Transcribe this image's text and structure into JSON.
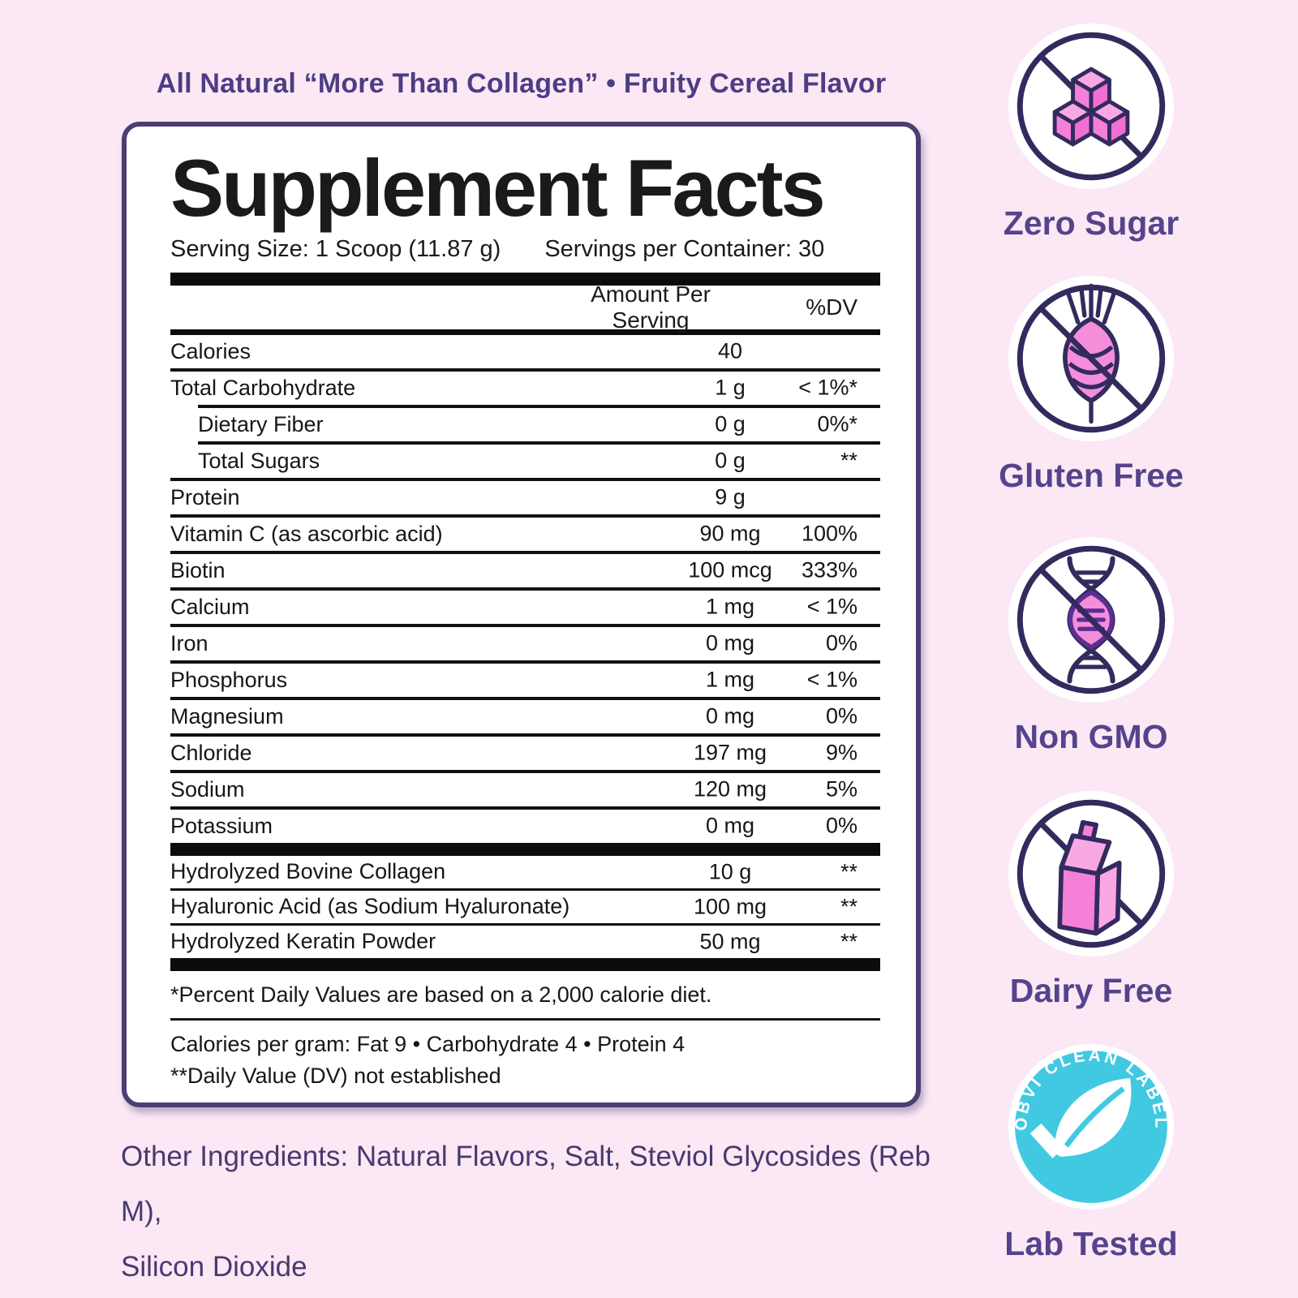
{
  "page": {
    "background": "#fbe8f4"
  },
  "header": {
    "tagline": "All Natural “More Than Collagen” • Fruity Cereal Flavor"
  },
  "panel": {
    "title": "Supplement Facts",
    "serving_size": "Serving Size: 1 Scoop (11.87 g)",
    "servings_per_container": "Servings per Container: 30",
    "columns": {
      "amount": "Amount Per Serving",
      "dv": "%DV"
    },
    "rows": [
      {
        "name": "Calories",
        "amount": "40",
        "dv": "",
        "indent": false
      },
      {
        "name": "Total Carbohydrate",
        "amount": "1 g",
        "dv": "< 1%*",
        "indent": false
      },
      {
        "name": "Dietary Fiber",
        "amount": "0 g",
        "dv": "0%*",
        "indent": true
      },
      {
        "name": "Total Sugars",
        "amount": "0 g",
        "dv": "**",
        "indent": true
      },
      {
        "name": "Protein",
        "amount": "9 g",
        "dv": "",
        "indent": false
      },
      {
        "name": "Vitamin C (as ascorbic acid)",
        "amount": "90 mg",
        "dv": "100%",
        "indent": false
      },
      {
        "name": "Biotin",
        "amount": "100 mcg",
        "dv": "333%",
        "indent": false
      },
      {
        "name": "Calcium",
        "amount": "1 mg",
        "dv": "< 1%",
        "indent": false
      },
      {
        "name": "Iron",
        "amount": "0 mg",
        "dv": "0%",
        "indent": false
      },
      {
        "name": "Phosphorus",
        "amount": "1 mg",
        "dv": "< 1%",
        "indent": false
      },
      {
        "name": "Magnesium",
        "amount": "0 mg",
        "dv": "0%",
        "indent": false
      },
      {
        "name": "Chloride",
        "amount": "197 mg",
        "dv": "9%",
        "indent": false
      },
      {
        "name": "Sodium",
        "amount": "120 mg",
        "dv": "5%",
        "indent": false
      },
      {
        "name": "Potassium",
        "amount": "0 mg",
        "dv": "0%",
        "indent": false
      }
    ],
    "blend_rows": [
      {
        "name": "Hydrolyzed Bovine Collagen",
        "amount": "10 g",
        "dv": "**",
        "indent": false
      },
      {
        "name": "Hyaluronic Acid (as Sodium Hyaluronate)",
        "amount": "100 mg",
        "dv": "**",
        "indent": false
      },
      {
        "name": "Hydrolyzed Keratin Powder",
        "amount": "50 mg",
        "dv": "**",
        "indent": false
      }
    ],
    "footnotes": {
      "dv_note": "*Percent Daily Values are based on a 2,000 calorie diet.",
      "calories_note": "Calories per gram: Fat 9 • Carbohydrate 4 • Protein 4",
      "not_established_note": "**Daily Value (DV) not established"
    }
  },
  "other_ingredients": {
    "line1": "Other Ingredients: Natural Flavors, Salt, Steviol Glycosides (Reb M),",
    "line2": "Silicon Dioxide"
  },
  "badges": [
    {
      "label": "Zero Sugar",
      "icon": "no-sugar-icon"
    },
    {
      "label": "Gluten Free",
      "icon": "no-gluten-icon"
    },
    {
      "label": "Non GMO",
      "icon": "no-gmo-icon"
    },
    {
      "label": "Dairy Free",
      "icon": "no-dairy-icon"
    },
    {
      "label": "Lab Tested",
      "icon": "clean-label-seal-icon",
      "seal_text": "OBVI CLEAN LABEL"
    }
  ],
  "colors": {
    "background": "#fbe8f4",
    "panel_border": "#4d3d72",
    "accent_purple": "#55438c",
    "icon_outline": "#332a5e",
    "icon_pink": "#f480d8",
    "icon_pink_light": "#f9a8e3",
    "seal_teal": "#41c9e2",
    "table_black": "#111111"
  }
}
